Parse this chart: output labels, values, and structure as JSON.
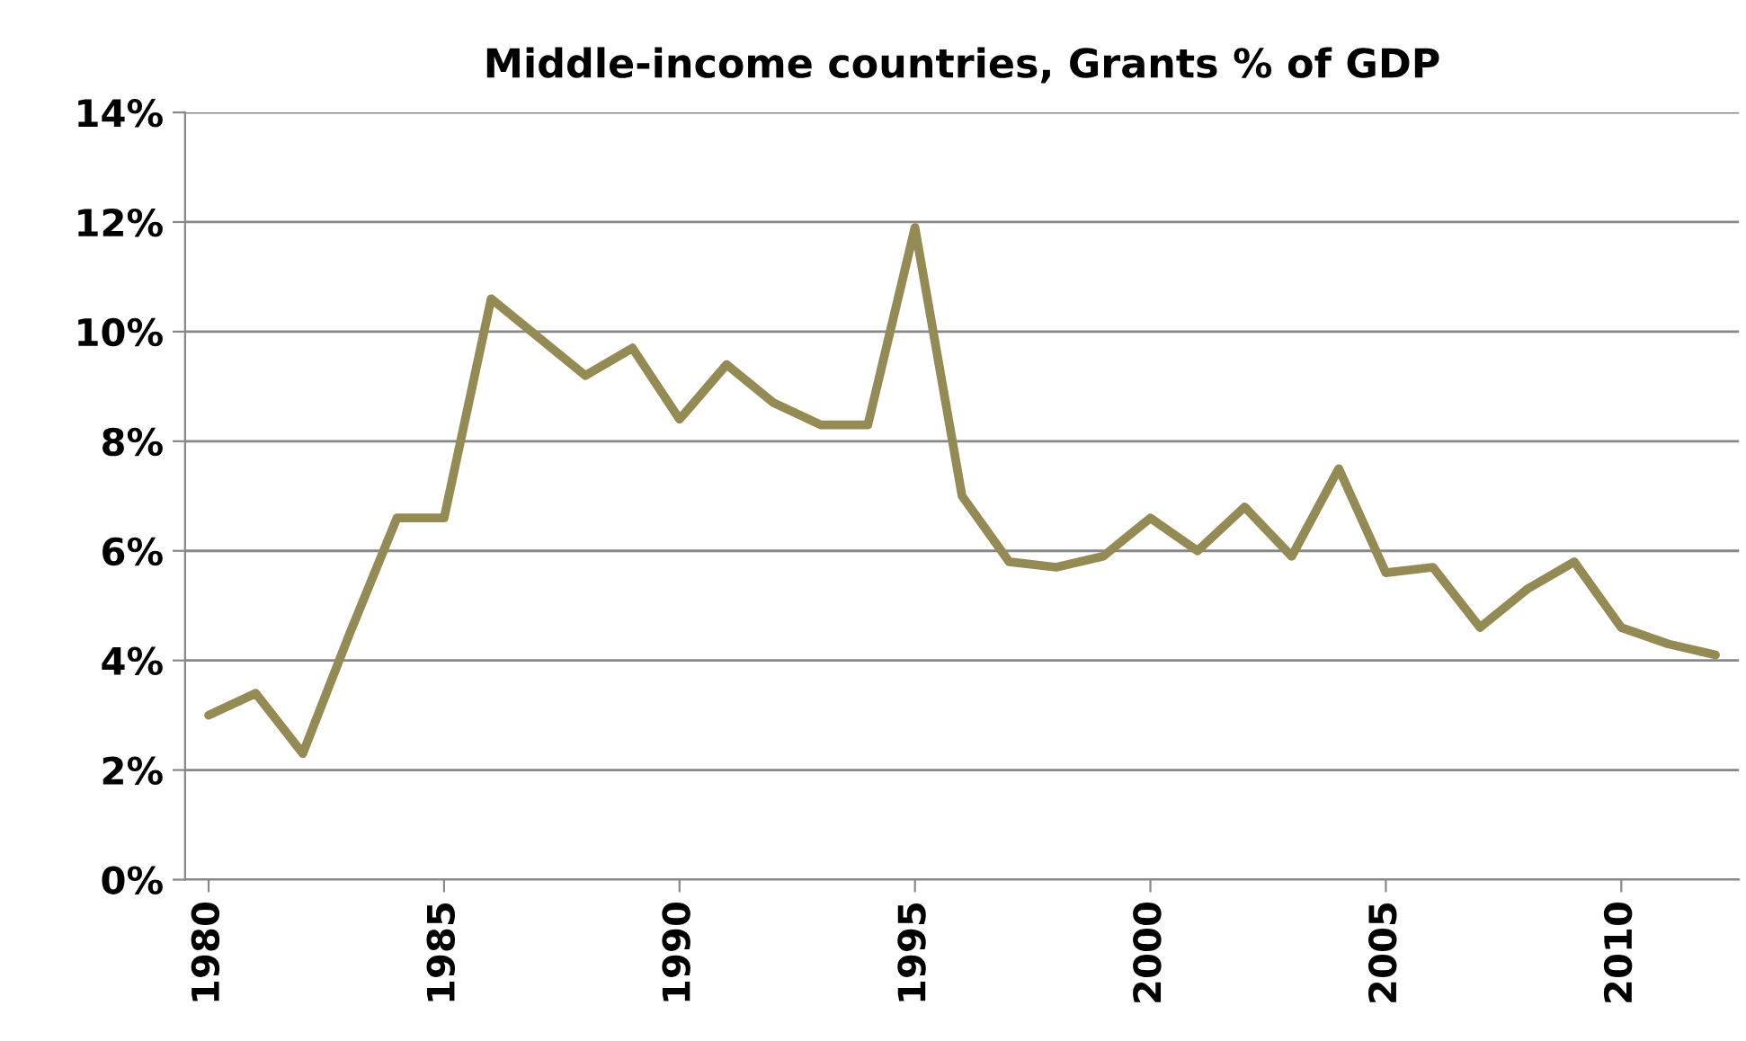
{
  "chart_data": {
    "type": "line",
    "title": "Middle-income countries, Grants % of GDP",
    "x": [
      1980,
      1981,
      1982,
      1983,
      1984,
      1985,
      1986,
      1987,
      1988,
      1989,
      1990,
      1991,
      1992,
      1993,
      1994,
      1995,
      1996,
      1997,
      1998,
      1999,
      2000,
      2001,
      2002,
      2003,
      2004,
      2005,
      2006,
      2007,
      2008,
      2009,
      2010,
      2011,
      2012
    ],
    "series": [
      {
        "color": "#948a54",
        "values": [
          3.0,
          3.4,
          2.3,
          4.5,
          6.6,
          6.6,
          10.6,
          9.9,
          9.2,
          9.7,
          8.4,
          9.4,
          8.7,
          8.3,
          8.3,
          11.9,
          7.0,
          5.8,
          5.7,
          5.9,
          6.6,
          6.0,
          6.8,
          5.9,
          7.5,
          5.6,
          5.7,
          4.6,
          5.3,
          5.8,
          4.6,
          4.3,
          4.1
        ]
      }
    ],
    "xlim": [
      1979.5,
      2012.5
    ],
    "xticks": [
      1980,
      1985,
      1990,
      1995,
      2000,
      2005,
      2010
    ],
    "ylim": [
      0,
      14
    ],
    "yticks": [
      {
        "value": 0,
        "label": "0%"
      },
      {
        "value": 2,
        "label": "2%"
      },
      {
        "value": 4,
        "label": "4%"
      },
      {
        "value": 6,
        "label": "6%"
      },
      {
        "value": 8,
        "label": "8%"
      },
      {
        "value": 10,
        "label": "10%"
      },
      {
        "value": 12,
        "label": "12%"
      },
      {
        "value": 14,
        "label": "14%"
      }
    ],
    "grid": "y",
    "legend": false,
    "marker": "none",
    "line_style": "solid"
  }
}
